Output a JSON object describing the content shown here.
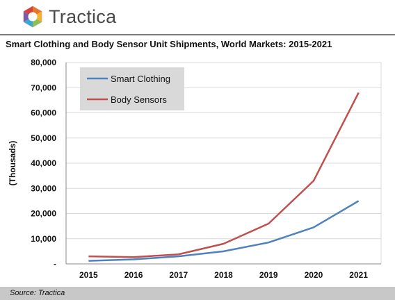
{
  "brand": {
    "name": "Tractica",
    "logo_icon": "tractica-hexagon-logo-icon"
  },
  "footer": {
    "source": "Source: Tractica"
  },
  "colors": {
    "smart_clothing": "#4f81bd",
    "body_sensors": "#c0504d",
    "legend_bg": "#d9d9d9",
    "footer_bg": "#c8c8c8"
  },
  "chart_data": {
    "type": "line",
    "title": "Smart Clothing and Body Sensor Unit Shipments, World Markets: 2015-2021",
    "ylabel": "(Thousads)",
    "xlabel": "",
    "x": [
      "2015",
      "2016",
      "2017",
      "2018",
      "2019",
      "2020",
      "2021"
    ],
    "ylim": [
      0,
      80000
    ],
    "y_ticks": [
      "-",
      "10,000",
      "20,000",
      "30,000",
      "40,000",
      "50,000",
      "60,000",
      "70,000",
      "80,000"
    ],
    "grid": true,
    "legend_position": "top-left",
    "series": [
      {
        "name": "Smart Clothing",
        "values": [
          1200,
          1800,
          3000,
          5000,
          8500,
          14500,
          25000
        ]
      },
      {
        "name": "Body Sensors",
        "values": [
          3000,
          2700,
          3800,
          8000,
          16000,
          33000,
          68000
        ]
      }
    ]
  }
}
